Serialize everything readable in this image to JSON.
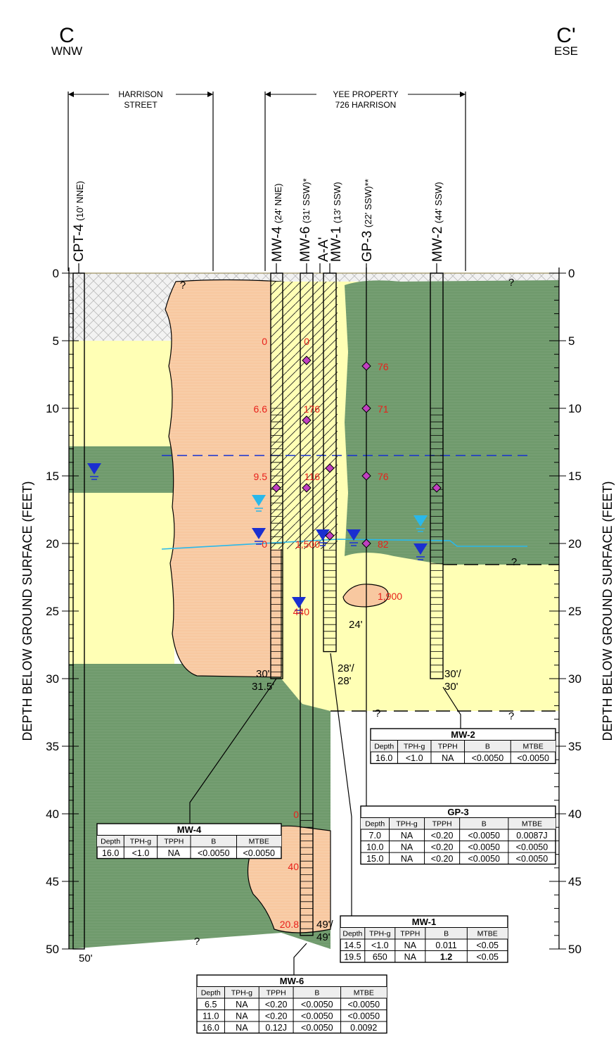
{
  "header": {
    "left_label": "C",
    "left_direction": "WNW",
    "right_label": "C'",
    "right_direction": "ESE"
  },
  "extents": [
    {
      "lines": [
        "HARRISON",
        "STREET"
      ]
    },
    {
      "lines": [
        "YEE PROPERTY",
        "726 HARRISON"
      ]
    }
  ],
  "borings": [
    {
      "name": "CPT-4",
      "note": "(10' NNE)"
    },
    {
      "name": "MW-4",
      "note": "(24' NNE)"
    },
    {
      "name": "MW-6",
      "note": "(31' SSW)*"
    },
    {
      "name": "A-A'"
    },
    {
      "name": "MW-1",
      "note": "(13' SSW)"
    },
    {
      "name": "GP-3",
      "note": "(22' SSW)**"
    },
    {
      "name": "MW-2",
      "note": "(44' SSW)"
    }
  ],
  "depth_axis": {
    "label": "DEPTH BELOW GROUND SURFACE (FEET)",
    "ticks": [
      0,
      5,
      10,
      15,
      20,
      25,
      30,
      35,
      40,
      45,
      50
    ]
  },
  "unknown_marker": "?",
  "depth_labels": [
    "50'",
    "30'",
    "31.5'",
    "28'/",
    "28'",
    "30'/",
    "30'",
    "49'/",
    "49'",
    "24'"
  ],
  "concentrations": [
    "0",
    "6.6",
    "9.5",
    "0",
    "0",
    "176",
    "116",
    "1,500",
    "440",
    "76",
    "71",
    "76",
    "82",
    "1,900",
    "0",
    "40",
    "20.8"
  ],
  "tables": [
    {
      "title": "MW-2",
      "columns": [
        "Depth",
        "TPH-g",
        "TPPH",
        "B",
        "MTBE"
      ],
      "rows": [
        [
          "16.0",
          "<1.0",
          "NA",
          "<0.0050",
          "<0.0050"
        ]
      ]
    },
    {
      "title": "GP-3",
      "columns": [
        "Depth",
        "TPH-g",
        "TPPH",
        "B",
        "MTBE"
      ],
      "rows": [
        [
          "7.0",
          "NA",
          "<0.20",
          "<0.0050",
          "0.0087J"
        ],
        [
          "10.0",
          "NA",
          "<0.20",
          "<0.0050",
          "<0.0050"
        ],
        [
          "15.0",
          "NA",
          "<0.20",
          "<0.0050",
          "<0.0050"
        ]
      ]
    },
    {
      "title": "MW-1",
      "columns": [
        "Depth",
        "TPH-g",
        "TPPH",
        "B",
        "MTBE"
      ],
      "rows": [
        [
          "14.5",
          "<1.0",
          "NA",
          "0.011",
          "<0.05"
        ],
        [
          "19.5",
          "650",
          "NA",
          "1.2",
          "<0.05"
        ]
      ]
    },
    {
      "title": "MW-4",
      "columns": [
        "Depth",
        "TPH-g",
        "TPPH",
        "B",
        "MTBE"
      ],
      "rows": [
        [
          "16.0",
          "<1.0",
          "NA",
          "<0.0050",
          "<0.0050"
        ]
      ]
    },
    {
      "title": "MW-6",
      "columns": [
        "Depth",
        "TPH-g",
        "TPPH",
        "B",
        "MTBE"
      ],
      "rows": [
        [
          "6.5",
          "NA",
          "<0.20",
          "<0.0050",
          "<0.0050"
        ],
        [
          "11.0",
          "NA",
          "<0.20",
          "<0.0050",
          "<0.0050"
        ],
        [
          "16.0",
          "NA",
          "0.12J",
          "<0.0050",
          "0.0092"
        ]
      ]
    }
  ]
}
